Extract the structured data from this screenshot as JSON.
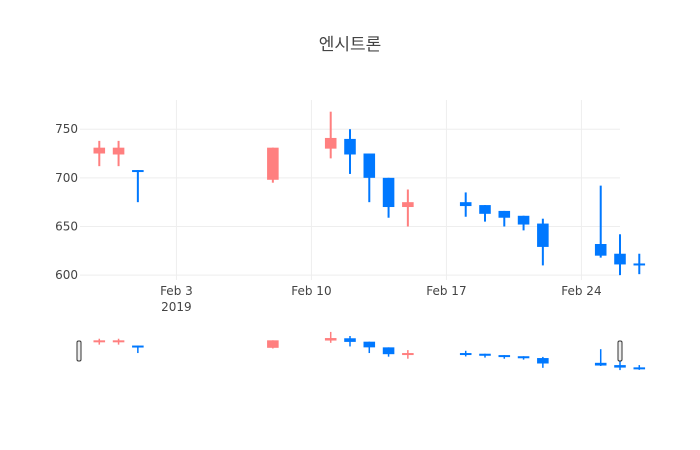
{
  "chart_data": {
    "type": "candlestick",
    "title": "엔시트론",
    "x_axis": {
      "ticks": [
        {
          "date": "2019-02-03",
          "label": "Feb 3",
          "sublabel": "2019"
        },
        {
          "date": "2019-02-10",
          "label": "Feb 10",
          "sublabel": ""
        },
        {
          "date": "2019-02-17",
          "label": "Feb 17",
          "sublabel": ""
        },
        {
          "date": "2019-02-24",
          "label": "Feb 24",
          "sublabel": ""
        }
      ],
      "range": [
        "2019-01-29",
        "2019-02-26"
      ],
      "grid": true
    },
    "y_axis": {
      "ticks": [
        600,
        650,
        700,
        750
      ],
      "range": [
        595,
        780
      ],
      "grid": true
    },
    "rangeslider": true,
    "colors": {
      "increasing": "#ff7f7f",
      "decreasing": "#0078ff",
      "grid": "#eeeeee",
      "text": "#444444"
    },
    "candles": [
      {
        "date": "2019-01-30",
        "open": 725,
        "high": 738,
        "low": 712,
        "close": 731
      },
      {
        "date": "2019-01-31",
        "open": 724,
        "high": 738,
        "low": 712,
        "close": 731
      },
      {
        "date": "2019-02-01",
        "open": 708,
        "high": 708,
        "low": 675,
        "close": 706
      },
      {
        "date": "2019-02-08",
        "open": 698,
        "high": 731,
        "low": 695,
        "close": 731
      },
      {
        "date": "2019-02-11",
        "open": 730,
        "high": 768,
        "low": 720,
        "close": 741
      },
      {
        "date": "2019-02-12",
        "open": 740,
        "high": 750,
        "low": 704,
        "close": 724
      },
      {
        "date": "2019-02-13",
        "open": 725,
        "high": 725,
        "low": 675,
        "close": 700
      },
      {
        "date": "2019-02-14",
        "open": 700,
        "high": 700,
        "low": 659,
        "close": 670
      },
      {
        "date": "2019-02-15",
        "open": 670,
        "high": 688,
        "low": 650,
        "close": 675
      },
      {
        "date": "2019-02-18",
        "open": 675,
        "high": 685,
        "low": 660,
        "close": 671
      },
      {
        "date": "2019-02-19",
        "open": 672,
        "high": 672,
        "low": 655,
        "close": 663
      },
      {
        "date": "2019-02-20",
        "open": 666,
        "high": 666,
        "low": 650,
        "close": 659
      },
      {
        "date": "2019-02-21",
        "open": 661,
        "high": 661,
        "low": 646,
        "close": 652
      },
      {
        "date": "2019-02-22",
        "open": 653,
        "high": 658,
        "low": 610,
        "close": 629
      },
      {
        "date": "2019-02-25",
        "open": 632,
        "high": 692,
        "low": 618,
        "close": 620
      },
      {
        "date": "2019-02-26",
        "open": 622,
        "high": 642,
        "low": 600,
        "close": 611
      },
      {
        "date": "2019-02-27",
        "open": 612,
        "high": 622,
        "low": 601,
        "close": 610
      }
    ]
  }
}
